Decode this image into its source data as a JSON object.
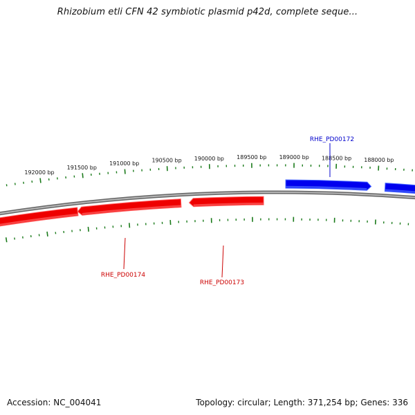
{
  "title": "Rhizobium etli CFN 42 symbiotic plasmid p42d, complete seque...",
  "footer": {
    "accession": "Accession: NC_004041",
    "summary": "Topology: circular; Length: 371,254 bp; Genes: 336"
  },
  "colors": {
    "forward_gene": "#0000ee",
    "reverse_gene": "#ee0000",
    "backbone": "#8a8a8a",
    "ticks": "#1a7a1a",
    "label_forward": "#0000cc",
    "label_reverse": "#cc0000"
  },
  "ruler": {
    "tick_labels": [
      "192000 bp",
      "191500 bp",
      "191000 bp",
      "190500 bp",
      "190000 bp",
      "189500 bp",
      "189000 bp",
      "188500 bp",
      "188000 bp"
    ]
  },
  "genes": [
    {
      "name": "RHE_PD00172",
      "strand": "forward"
    },
    {
      "name": "RHE_PD00173",
      "strand": "reverse"
    },
    {
      "name": "RHE_PD00174",
      "strand": "reverse"
    }
  ]
}
